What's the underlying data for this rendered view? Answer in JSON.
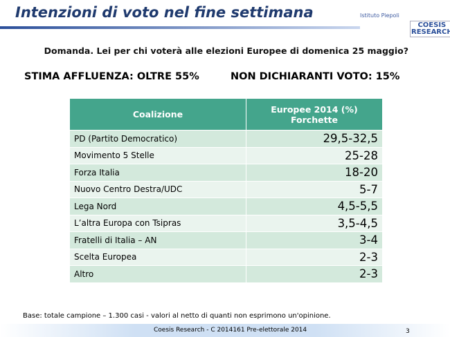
{
  "header": {
    "title": "Intenzioni di voto nel fine settimana",
    "logo_left": "Istituto Piepoli",
    "logo_right": [
      "COESIS",
      "RESEARCH"
    ]
  },
  "question": "Domanda. Lei per chi voterà alle elezioni Europee di domenica 25 maggio?",
  "stats": [
    "STIMA AFFLUENZA: OLTRE 55%",
    "NON DICHIARANTI VOTO: 15%"
  ],
  "table": {
    "columns": [
      {
        "label": "Coalizione"
      },
      {
        "label": "Europee 2014 (%)",
        "sublabel": "Forchette"
      }
    ],
    "rows": [
      [
        "PD (Partito Democratico)",
        "29,5-32,5"
      ],
      [
        "Movimento 5 Stelle",
        "25-28"
      ],
      [
        "Forza Italia",
        "18-20"
      ],
      [
        "Nuovo Centro Destra/UDC",
        "5-7"
      ],
      [
        "Lega Nord",
        "4,5-5,5"
      ],
      [
        "L’altra Europa con Tsipras",
        "3,5-4,5"
      ],
      [
        "Fratelli di Italia – AN",
        "3-4"
      ],
      [
        "Scelta Europea",
        "2-3"
      ],
      [
        "Altro",
        "2-3"
      ]
    ]
  },
  "note": "Base: totale campione – 1.300 casi - valori al netto di quanti non esprimono un'opinione.",
  "footer": {
    "text": "Coesis Research - C 2014161 Pre-elettorale 2014",
    "page": "3"
  }
}
